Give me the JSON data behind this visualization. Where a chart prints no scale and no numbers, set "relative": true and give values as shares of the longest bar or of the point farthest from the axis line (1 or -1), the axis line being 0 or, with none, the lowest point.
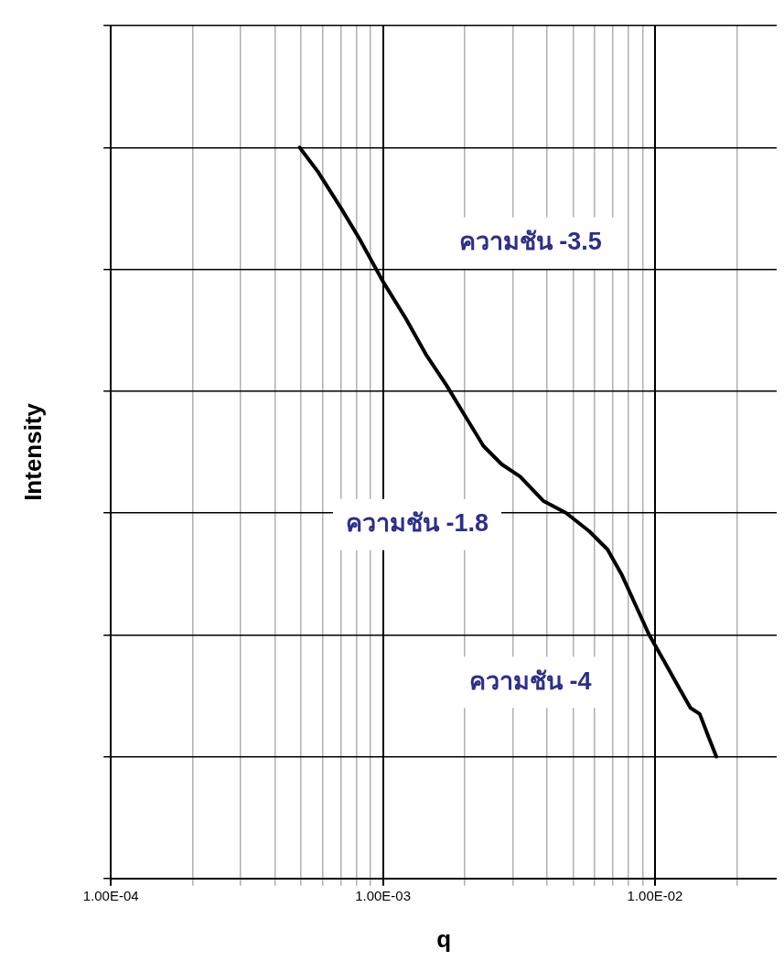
{
  "chart_data": {
    "type": "line",
    "xlabel": "q",
    "ylabel": "Intensity",
    "log": "x",
    "relative": true,
    "grid": true,
    "marker": "none",
    "line_style": "solid",
    "xlim": [
      0.0001,
      0.028
    ],
    "xticks": [
      {
        "value": 0.0001,
        "label": "1.00E-04"
      },
      {
        "value": 0.0002,
        "label": null
      },
      {
        "value": 0.0003,
        "label": null
      },
      {
        "value": 0.0004,
        "label": null
      },
      {
        "value": 0.0005,
        "label": null
      },
      {
        "value": 0.0006,
        "label": null
      },
      {
        "value": 0.0007,
        "label": null
      },
      {
        "value": 0.0008,
        "label": null
      },
      {
        "value": 0.0009,
        "label": null
      },
      {
        "value": 0.001,
        "label": "1.00E-03"
      },
      {
        "value": 0.002,
        "label": null
      },
      {
        "value": 0.003,
        "label": null
      },
      {
        "value": 0.004,
        "label": null
      },
      {
        "value": 0.005,
        "label": null
      },
      {
        "value": 0.006,
        "label": null
      },
      {
        "value": 0.007,
        "label": null
      },
      {
        "value": 0.008,
        "label": null
      },
      {
        "value": 0.009,
        "label": null
      },
      {
        "value": 0.01,
        "label": "1.00E-02"
      },
      {
        "value": 0.02,
        "label": null
      }
    ],
    "annotations": [
      "ความชัน -3.5",
      "ความชัน -1.8",
      "ความชัน -4"
    ],
    "series": [
      {
        "color": "#000000",
        "x": [
          0.000494,
          0.000577,
          0.000702,
          0.00082,
          0.001,
          0.00121,
          0.00144,
          0.00171,
          0.002,
          0.00234,
          0.00273,
          0.00319,
          0.00388,
          0.00471,
          0.00573,
          0.00669,
          0.00752,
          0.00846,
          0.00951,
          0.0107,
          0.012,
          0.0135,
          0.0146,
          0.0158,
          0.0168
        ],
        "values": [
          1,
          0.96,
          0.9,
          0.85,
          0.78,
          0.72,
          0.66,
          0.61,
          0.56,
          0.51,
          0.48,
          0.46,
          0.42,
          0.4,
          0.37,
          0.34,
          0.3,
          0.25,
          0.2,
          0.16,
          0.12,
          0.08,
          0.07,
          0.03,
          0
        ]
      }
    ]
  }
}
